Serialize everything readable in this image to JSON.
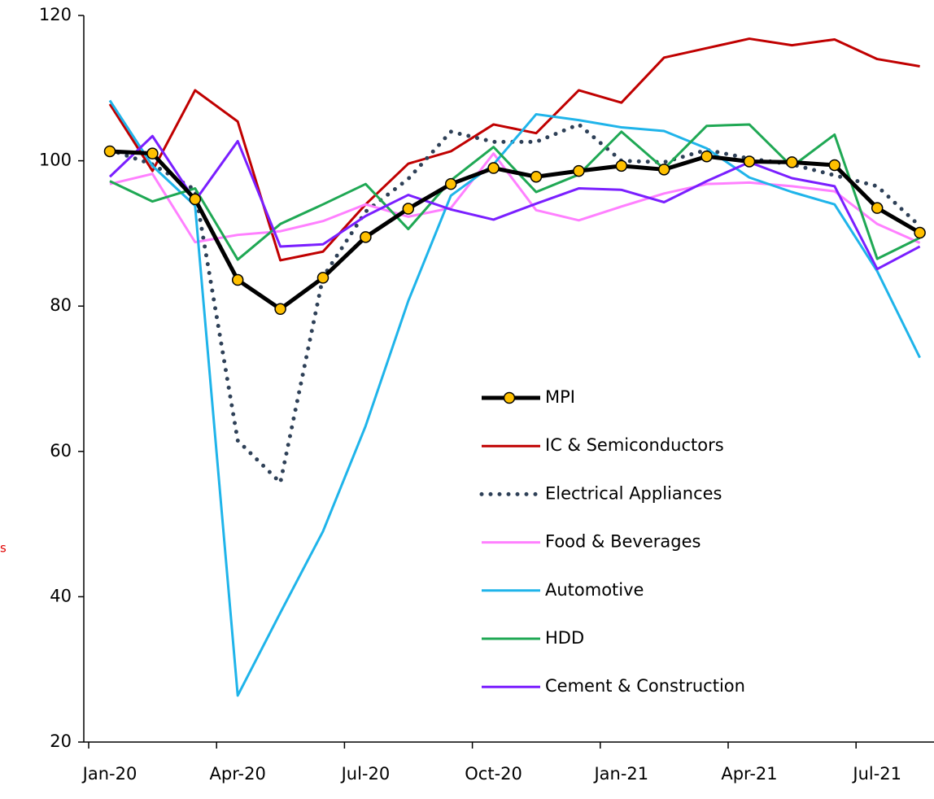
{
  "chart_data": {
    "type": "line",
    "categories": [
      "Jan-20",
      null,
      null,
      "Apr-20",
      null,
      null,
      "Jul-20",
      null,
      null,
      "Oct-20",
      null,
      null,
      "Jan-21",
      null,
      null,
      "Apr-21",
      null,
      null,
      "Jul-21",
      null
    ],
    "annotation": "s",
    "ylim": [
      20,
      120
    ],
    "yticks": [
      20,
      40,
      60,
      80,
      100,
      120
    ],
    "legend": "center",
    "series": [
      {
        "name": "MPI",
        "color": "#000000",
        "style": "solid-markers",
        "values": [
          101.3,
          101.0,
          94.7,
          83.6,
          79.6,
          83.9,
          89.5,
          93.4,
          96.8,
          99.0,
          97.8,
          98.6,
          99.3,
          98.8,
          100.6,
          99.9,
          99.8,
          99.4,
          93.5,
          90.1
        ]
      },
      {
        "name": "IC & Semiconductors",
        "color": "#c00000",
        "style": "solid",
        "values": [
          107.8,
          98.6,
          109.7,
          105.4,
          86.3,
          87.5,
          94.0,
          99.6,
          101.3,
          105.0,
          103.8,
          109.7,
          108.0,
          114.2,
          115.5,
          116.8,
          115.9,
          116.7,
          114.0,
          113.0
        ]
      },
      {
        "name": "Electrical Appliances",
        "color": "#2e4057",
        "style": "dotted",
        "values": [
          101.5,
          99.5,
          96.0,
          61.5,
          55.7,
          84.0,
          93.0,
          97.5,
          104.0,
          102.6,
          102.6,
          105.0,
          100.0,
          99.8,
          101.5,
          100.3,
          99.5,
          98.0,
          96.5,
          91.0
        ]
      },
      {
        "name": "Food & Beverages",
        "color": "#ff80ff",
        "style": "solid",
        "values": [
          96.8,
          98.2,
          88.8,
          89.8,
          90.3,
          91.7,
          94.0,
          92.3,
          93.5,
          101.0,
          93.2,
          91.8,
          93.7,
          95.5,
          96.8,
          97.0,
          96.5,
          95.8,
          91.3,
          88.7
        ]
      },
      {
        "name": "Automotive",
        "color": "#1fb4ea",
        "style": "solid",
        "values": [
          108.3,
          99.3,
          93.8,
          26.4,
          37.8,
          49.0,
          63.5,
          80.7,
          95.2,
          99.5,
          106.4,
          105.6,
          104.6,
          104.1,
          101.7,
          97.7,
          95.7,
          94.0,
          84.8,
          72.9
        ]
      },
      {
        "name": "HDD",
        "color": "#1fa854",
        "style": "solid",
        "values": [
          97.2,
          94.4,
          96.2,
          86.4,
          91.3,
          94.0,
          96.8,
          90.6,
          97.3,
          101.9,
          95.7,
          98.1,
          104.0,
          98.9,
          104.8,
          105.0,
          99.2,
          103.6,
          86.5,
          89.4
        ]
      },
      {
        "name": "Cement & Construction",
        "color": "#7a1fff",
        "style": "solid",
        "values": [
          97.8,
          103.4,
          94.5,
          102.7,
          88.2,
          88.5,
          92.4,
          95.3,
          93.3,
          91.9,
          94.1,
          96.2,
          96.0,
          94.3,
          97.2,
          99.8,
          97.6,
          96.5,
          85.1,
          88.2
        ]
      }
    ]
  }
}
